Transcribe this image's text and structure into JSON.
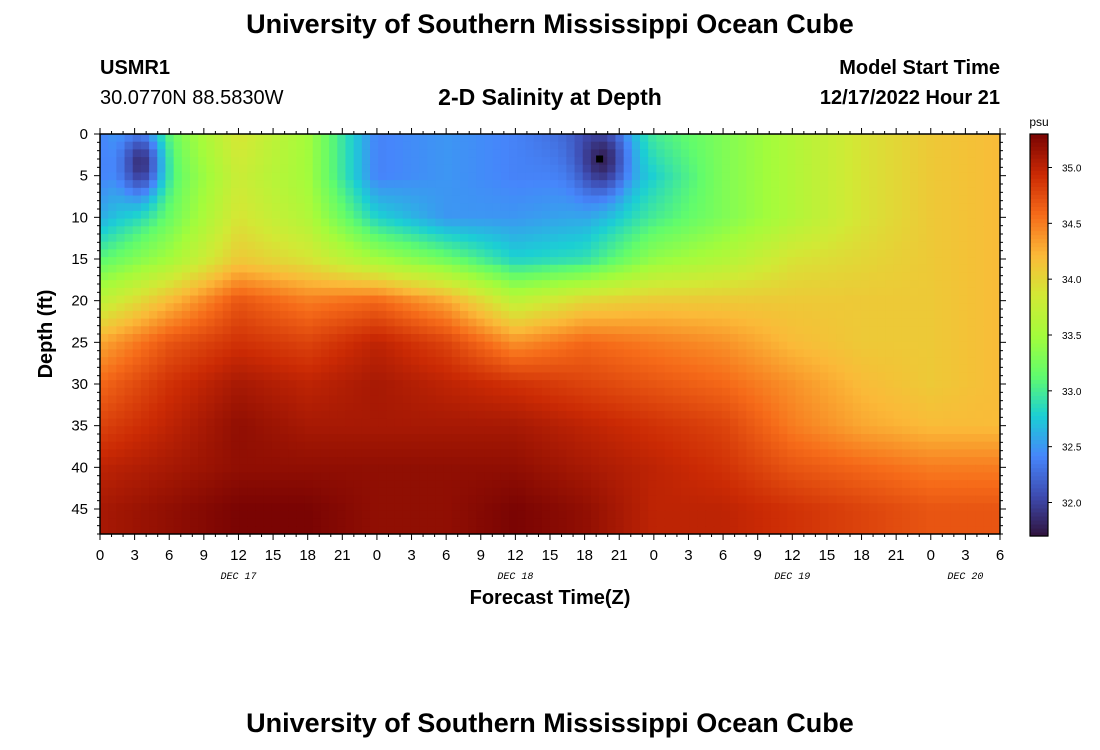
{
  "header": {
    "main_title": "University of Southern Mississippi Ocean Cube",
    "footer_title": "University of Southern Mississippi Ocean Cube",
    "station_id": "USMR1",
    "station_coords": "30.0770N  88.5830W",
    "plot_title": "2-D Salinity at Depth",
    "model_start_label": "Model Start Time",
    "model_start_value": "12/17/2022 Hour 21"
  },
  "colors": {
    "frame": "#000000",
    "colormap": [
      "#30123b",
      "#3e4bb0",
      "#4686fb",
      "#1bcfd4",
      "#61fc6c",
      "#a4fc3b",
      "#d2e935",
      "#fbb938",
      "#f66b19",
      "#cb2a04",
      "#7a0403"
    ]
  },
  "chart_data": {
    "type": "heatmap",
    "title": "2-D Salinity at Depth",
    "xlabel": "Forecast Time(Z)",
    "ylabel": "Depth (ft)",
    "xlim": [
      0,
      78
    ],
    "ylim": [
      48,
      0
    ],
    "x_tick_labels": [
      "0",
      "3",
      "6",
      "9",
      "12",
      "15",
      "18",
      "21",
      "0",
      "3",
      "6",
      "9",
      "12",
      "15",
      "18",
      "21",
      "0",
      "3",
      "6",
      "9",
      "12",
      "15",
      "18",
      "21",
      "0",
      "3",
      "6"
    ],
    "y_ticks": [
      0,
      5,
      10,
      15,
      20,
      25,
      30,
      35,
      40,
      45
    ],
    "y_tick_labels": [
      "0",
      "5",
      "10",
      "15",
      "20",
      "25",
      "30",
      "35",
      "40",
      "45"
    ],
    "date_labels": [
      {
        "label": "DEC 17",
        "hour": 12
      },
      {
        "label": "DEC 18",
        "hour": 36
      },
      {
        "label": "DEC 19",
        "hour": 60
      },
      {
        "label": "DEC 20",
        "hour": 75
      }
    ],
    "colorbar": {
      "unit": "psu",
      "min": 31.7,
      "max": 35.3,
      "ticks": [
        32.0,
        32.5,
        33.0,
        33.5,
        34.0,
        34.5,
        35.0
      ],
      "tick_labels": [
        "32.0",
        "32.5",
        "33.0",
        "33.5",
        "34.0",
        "34.5",
        "35.0"
      ]
    },
    "x_hours": [
      0,
      6,
      12,
      18,
      24,
      30,
      36,
      42,
      48,
      54,
      60,
      66,
      72,
      78
    ],
    "depths": [
      0,
      5,
      10,
      15,
      20,
      25,
      30,
      35,
      40,
      45,
      48
    ],
    "values": [
      [
        32.4,
        33.2,
        33.9,
        33.5,
        32.4,
        32.5,
        32.4,
        32.2,
        33.0,
        33.3,
        33.6,
        33.9,
        34.1,
        34.2
      ],
      [
        32.4,
        33.1,
        33.8,
        33.5,
        32.4,
        32.5,
        32.4,
        32.4,
        32.8,
        33.3,
        33.6,
        33.9,
        34.1,
        34.2
      ],
      [
        32.6,
        33.2,
        33.9,
        33.6,
        32.8,
        32.5,
        32.5,
        32.6,
        33.0,
        33.3,
        33.6,
        33.9,
        34.1,
        34.2
      ],
      [
        33.1,
        33.5,
        34.1,
        33.9,
        33.5,
        33.2,
        32.8,
        32.9,
        33.4,
        33.6,
        33.9,
        34.0,
        34.1,
        34.2
      ],
      [
        33.7,
        34.2,
        34.7,
        34.5,
        34.6,
        34.3,
        33.7,
        34.0,
        34.1,
        34.1,
        34.1,
        34.1,
        34.1,
        34.2
      ],
      [
        34.3,
        34.7,
        34.9,
        34.8,
        35.0,
        34.8,
        34.4,
        34.6,
        34.5,
        34.4,
        34.2,
        34.1,
        34.1,
        34.2
      ],
      [
        34.6,
        34.9,
        35.1,
        35.0,
        35.1,
        35.0,
        34.9,
        34.8,
        34.7,
        34.6,
        34.4,
        34.2,
        34.1,
        34.2
      ],
      [
        34.8,
        35.0,
        35.2,
        35.1,
        35.1,
        35.1,
        35.1,
        35.0,
        34.9,
        34.8,
        34.5,
        34.3,
        34.2,
        34.2
      ],
      [
        35.0,
        35.1,
        35.2,
        35.2,
        35.2,
        35.2,
        35.2,
        35.1,
        35.0,
        34.9,
        34.7,
        34.6,
        34.5,
        34.5
      ],
      [
        35.1,
        35.2,
        35.3,
        35.3,
        35.2,
        35.2,
        35.3,
        35.2,
        35.0,
        35.0,
        34.9,
        34.8,
        34.7,
        34.7
      ],
      [
        35.1,
        35.2,
        35.3,
        35.3,
        35.2,
        35.2,
        35.3,
        35.2,
        35.0,
        35.0,
        34.9,
        34.8,
        34.7,
        34.7
      ]
    ],
    "minima": [
      {
        "hour": 3.5,
        "depth": 3.5,
        "value": 31.9,
        "sigma_h": 1.3,
        "sigma_d": 3.0
      },
      {
        "hour": 43.5,
        "depth": 3.0,
        "value": 31.8,
        "sigma_h": 1.5,
        "sigma_d": 3.0
      }
    ],
    "marker": {
      "hour": 43.3,
      "depth": 3.0
    }
  }
}
